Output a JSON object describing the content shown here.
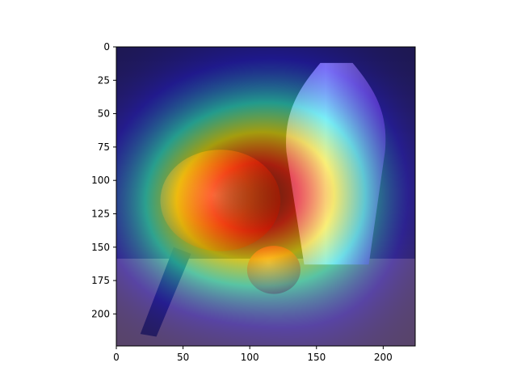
{
  "chart_data": {
    "type": "heatmap",
    "description_free": true,
    "xlim": [
      0,
      224
    ],
    "ylim": [
      224,
      0
    ],
    "x_ticks": [
      0,
      50,
      100,
      150,
      200
    ],
    "y_ticks": [
      0,
      25,
      50,
      75,
      100,
      125,
      150,
      175,
      200
    ],
    "x_tick_labels": [
      "0",
      "50",
      "100",
      "150",
      "200"
    ],
    "y_tick_labels": [
      "0",
      "25",
      "50",
      "75",
      "100",
      "125",
      "150",
      "175",
      "200"
    ],
    "colormap": "jet",
    "overlay_alpha": 0.5,
    "activation_peaks": [
      {
        "x": 100,
        "y": 100,
        "sx": 55,
        "sy": 48,
        "weight": 1.0
      },
      {
        "x": 75,
        "y": 130,
        "sx": 45,
        "sy": 40,
        "weight": 0.55
      },
      {
        "x": 150,
        "y": 120,
        "sx": 40,
        "sy": 55,
        "weight": 0.45
      }
    ],
    "objects": [
      {
        "kind": "pan",
        "x": 78,
        "y": 115,
        "rx": 45,
        "ry": 38
      },
      {
        "kind": "vase",
        "x": 165,
        "y": 95
      },
      {
        "kind": "fruit",
        "x": 118,
        "y": 167,
        "rx": 20,
        "ry": 18
      }
    ]
  }
}
